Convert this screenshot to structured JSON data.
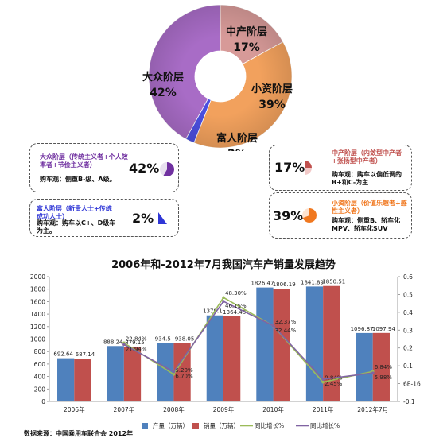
{
  "donut": {
    "segments": [
      {
        "label": "中产阶层",
        "percent": "17%",
        "value": 17,
        "color": "#d79a98"
      },
      {
        "label": "小资阶层",
        "percent": "39%",
        "value": 39,
        "color": "#f2a15d"
      },
      {
        "label": "富人阶层",
        "percent": "2%",
        "value": 2,
        "color": "#4b4fe0"
      },
      {
        "label": "大众阶层",
        "percent": "42%",
        "value": 42,
        "color": "#a86cc6"
      }
    ]
  },
  "callouts": {
    "mass": {
      "group": "大众阶层（传统主义者+个人效率者+节俭主义者）",
      "view": "购车观：侧重B-级、A级。",
      "percent": "42%",
      "color": "#7030a0"
    },
    "rich": {
      "group": "富人阶层（新贵人士+传统成功人士）",
      "view": "购车观：购车以C+、D级车为主。",
      "percent": "2%",
      "color": "#2f36d6"
    },
    "middle": {
      "group": "中产阶层（内敛型中产者+张扬型中产者）",
      "view": "购车观：购车以偏低调的B+和C-为主",
      "percent": "17%",
      "color": "#c0504d"
    },
    "petty": {
      "group": "小资阶层（价值乐趣者+感性主义者）",
      "view": "购车观：侧重B、轿车化MPV、轿车化SUV",
      "percent": "39%",
      "color": "#f07820"
    }
  },
  "chart_data": {
    "type": "bar",
    "title": "2006年和-2012年7月我国汽车产销量发展趋势",
    "categories": [
      "2006年",
      "2007年",
      "2008年",
      "2009年",
      "2010年",
      "2011年",
      "2012年7月"
    ],
    "series": [
      {
        "name": "产量（万辆）",
        "type": "bar",
        "axis": "left",
        "color": "#4f81bd",
        "values": [
          692.64,
          888.24,
          934.5,
          1379.1,
          1826.47,
          1841.89,
          1096.87
        ],
        "labels": [
          "692.64",
          "888.24",
          "934.5",
          "1379.1",
          "1826.47",
          "1841.89",
          "1096.87"
        ]
      },
      {
        "name": "销量（万辆）",
        "type": "bar",
        "axis": "left",
        "color": "#c0504d",
        "values": [
          687.14,
          879.15,
          938.05,
          1364.48,
          1806.19,
          1850.51,
          1097.94
        ],
        "labels": [
          "687.14",
          "879.15",
          "938.05",
          "1364.48",
          "1806.19",
          "1850.51",
          "1097.94"
        ]
      },
      {
        "name": "同比增长%",
        "type": "line",
        "axis": "right",
        "color": "#9bbb59",
        "values": [
          null,
          0.2284,
          0.052,
          0.483,
          0.3237,
          0.0084,
          0.0684
        ],
        "labels": [
          "",
          "22.84%",
          "5.20%",
          "48.30%",
          "32.37%",
          "0.84%",
          "6.84%"
        ]
      },
      {
        "name": "同比增长%",
        "type": "line",
        "axis": "right",
        "color": "#8064a2",
        "values": [
          null,
          0.2194,
          0.067,
          0.4615,
          0.3244,
          0.0245,
          0.0598
        ],
        "labels": [
          "",
          "21.94%",
          "6.70%",
          "46.15%",
          "32.44%",
          "2.45%",
          "5.98%"
        ]
      }
    ],
    "left_axis": {
      "ylim": [
        0,
        2000
      ],
      "ticks": [
        "0",
        "200",
        "400",
        "600",
        "800",
        "1000",
        "1200",
        "1400",
        "1600",
        "1800",
        "2000"
      ]
    },
    "right_axis": {
      "ylim": [
        -0.1,
        0.6
      ],
      "ticks": [
        "-0.1",
        "6E-16",
        "0.1",
        "0.2",
        "0.3",
        "0.4",
        "0.5",
        "0.6"
      ]
    },
    "legend": "bottom",
    "grid": false
  },
  "source": "数据来源：中国乘用车联合会  2012年"
}
